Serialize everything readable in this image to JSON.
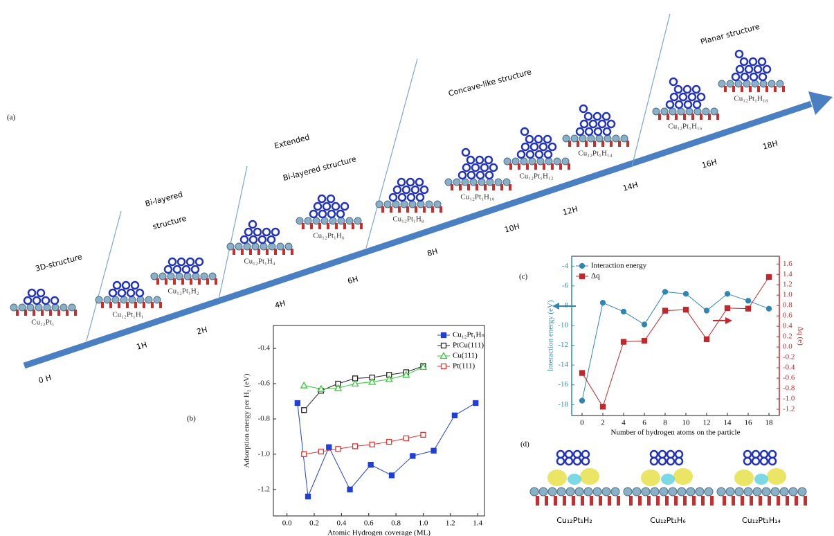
{
  "diagram": {
    "label": "(a)",
    "stage_lines": [
      "3D-structure",
      "Bi-layered",
      "structure",
      "Extended",
      "Bi-layered structure",
      "Concave-like structure",
      "Planar structure"
    ],
    "hydrogen_labels": [
      "0 H",
      "1H",
      "2H",
      "4H",
      "6H",
      "8H",
      "10H",
      "12H",
      "14H",
      "16H",
      "18H"
    ],
    "structures": [
      "Cu₁₂Pt₁",
      "Cu₁₂Pt₁H₁",
      "Cu₁₂Pt₁H₂",
      "Cu₁₂Pt₁H₄",
      "Cu₁₂Pt₁H₆",
      "Cu₁₂Pt₁H₈",
      "Cu₁₂Pt₁H₁₀",
      "Cu₁₂Pt₁H₁₂",
      "Cu₁₂Pt₁H₁₄",
      "Cu₁₂Pt₁H₁₆",
      "Cu₁₂Pt₁H₁₈"
    ]
  },
  "panel_d": {
    "label": "(d)",
    "captions": [
      "Cu₁₂Pt₁H₂",
      "Cu₁₂Pt₁H₆",
      "Cu₁₂Pt₁H₁₄"
    ]
  },
  "chart_data": [
    {
      "type": "line",
      "label": "(b)",
      "xlabel": "Atomic Hydrogen coverage (ML)",
      "ylabel": "Adsorption energy per H₂ (eV)",
      "xlim": [
        -0.1,
        1.45
      ],
      "ylim": [
        -1.35,
        -0.27
      ],
      "xticks": [
        {
          "value": 0,
          "label": "0.0"
        },
        0.2,
        0.4,
        0.6,
        0.8,
        {
          "value": 1,
          "label": "1.0"
        },
        1.2,
        1.4
      ],
      "yticks": [
        -0.4,
        -0.6,
        -0.8,
        {
          "value": -1,
          "label": "-1.0"
        },
        -1.2
      ],
      "legend": "upper right",
      "series": [
        {
          "name": "Cu₁₂Pt₁Hₙ",
          "color": "#1f3fd6",
          "marker": "square",
          "x": [
            0.077,
            0.154,
            0.308,
            0.462,
            0.615,
            0.769,
            0.923,
            1.077,
            1.231,
            1.385
          ],
          "values": [
            -0.71,
            -1.24,
            -0.96,
            -1.2,
            -1.06,
            -1.12,
            -1.01,
            -0.98,
            -0.78,
            -0.71
          ]
        },
        {
          "name": "PtCu(111)",
          "color": "#222222",
          "marker": "square-open",
          "x": [
            0.125,
            0.25,
            0.375,
            0.5,
            0.625,
            0.75,
            0.875,
            1.0
          ],
          "values": [
            -0.75,
            -0.64,
            -0.6,
            -0.57,
            -0.565,
            -0.55,
            -0.535,
            -0.5
          ]
        },
        {
          "name": "Cu(111)",
          "color": "#33cc33",
          "marker": "triangle-open",
          "x": [
            0.125,
            0.25,
            0.375,
            0.5,
            0.625,
            0.75,
            0.875,
            1.0
          ],
          "values": [
            -0.61,
            -0.63,
            -0.625,
            -0.6,
            -0.59,
            -0.575,
            -0.55,
            -0.505
          ]
        },
        {
          "name": "Pt(111)",
          "color": "#dd3333",
          "marker": "square-open",
          "x": [
            0.125,
            0.25,
            0.375,
            0.5,
            0.625,
            0.75,
            0.875,
            1.0
          ],
          "values": [
            -1.0,
            -0.985,
            -0.97,
            -0.955,
            -0.945,
            -0.93,
            -0.91,
            -0.89
          ]
        }
      ]
    },
    {
      "type": "line",
      "label": "(c)",
      "xlabel": "Number of hydrogen atoms on the particle",
      "ylabel": "Interaction energy (eV)",
      "y2label": "Δq (e)",
      "x": [
        0,
        2,
        4,
        6,
        8,
        10,
        12,
        14,
        16,
        18
      ],
      "xlim": [
        -1,
        19
      ],
      "ylim": [
        -19.1,
        -3
      ],
      "y2lim": [
        -1.32,
        1.75
      ],
      "xticks": [
        0,
        2,
        4,
        6,
        8,
        10,
        12,
        14,
        16,
        18
      ],
      "yticks": [
        -18,
        -16,
        -14,
        -12,
        -10,
        -8,
        -6,
        -4
      ],
      "y2ticks": [
        -1.2,
        {
          "value": -1,
          "label": "-1.0"
        },
        -0.8,
        -0.6,
        -0.4,
        -0.2,
        {
          "value": 0,
          "label": "0.0"
        },
        0.2,
        0.4,
        0.6,
        0.8,
        {
          "value": 1,
          "label": "1.0"
        },
        1.2,
        1.4,
        1.6
      ],
      "legend": "upper left",
      "series": [
        {
          "name": "Interaction energy",
          "color": "#2f86b4",
          "marker": "circle",
          "values": [
            -17.6,
            -7.7,
            -8.6,
            -9.9,
            -6.6,
            -6.8,
            -8.5,
            -6.8,
            -7.5,
            -8.3
          ]
        },
        {
          "name": "Δq",
          "color": "#c0282d",
          "marker": "square",
          "axis": "y2",
          "values": [
            -0.5,
            -1.15,
            0.1,
            0.12,
            0.7,
            0.72,
            0.15,
            0.75,
            0.74,
            1.35
          ]
        }
      ]
    }
  ]
}
